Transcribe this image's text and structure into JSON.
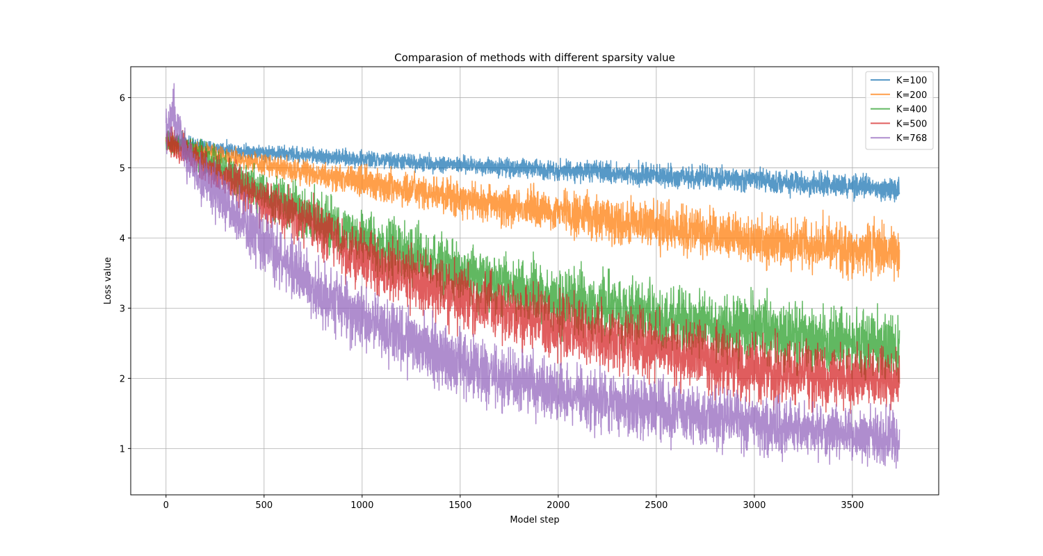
{
  "chart_data": {
    "type": "line",
    "title": "Comparasion of methods with different sparsity value",
    "xlabel": "Model step",
    "ylabel": "Loss value",
    "xlim": [
      -180,
      3940
    ],
    "ylim": [
      0.34,
      6.44
    ],
    "xticks": [
      0,
      500,
      1000,
      1500,
      2000,
      2500,
      3000,
      3500
    ],
    "yticks": [
      1,
      2,
      3,
      4,
      5,
      6
    ],
    "grid": true,
    "legend_position": "top-right",
    "x_range": [
      0,
      3740
    ],
    "series": [
      {
        "name": "K=100",
        "color": "#1f77b4",
        "trend_x": [
          0,
          100,
          250,
          500,
          1000,
          1500,
          2000,
          2500,
          3000,
          3500,
          3740
        ],
        "trend_y": [
          5.35,
          5.35,
          5.28,
          5.22,
          5.12,
          5.04,
          4.97,
          4.89,
          4.82,
          4.73,
          4.7
        ],
        "noise_amplitude": [
          0.08,
          0.08,
          0.08,
          0.09,
          0.1,
          0.1,
          0.12,
          0.13,
          0.14,
          0.14,
          0.14
        ]
      },
      {
        "name": "K=200",
        "color": "#ff7f0e",
        "trend_x": [
          0,
          100,
          250,
          500,
          1000,
          1500,
          2000,
          2500,
          3000,
          3500,
          3740
        ],
        "trend_y": [
          5.35,
          5.3,
          5.2,
          5.05,
          4.8,
          4.55,
          4.38,
          4.17,
          3.98,
          3.85,
          3.8
        ],
        "noise_amplitude": [
          0.1,
          0.1,
          0.1,
          0.12,
          0.18,
          0.22,
          0.25,
          0.28,
          0.3,
          0.32,
          0.32
        ]
      },
      {
        "name": "K=400",
        "color": "#2ca02c",
        "trend_x": [
          0,
          100,
          250,
          500,
          750,
          1000,
          1500,
          2000,
          2500,
          3000,
          3500,
          3740
        ],
        "trend_y": [
          5.4,
          5.3,
          5.05,
          4.65,
          4.3,
          3.98,
          3.5,
          3.12,
          2.85,
          2.7,
          2.5,
          2.45
        ],
        "noise_amplitude": [
          0.12,
          0.15,
          0.2,
          0.25,
          0.3,
          0.32,
          0.35,
          0.38,
          0.4,
          0.4,
          0.4,
          0.4
        ]
      },
      {
        "name": "K=500",
        "color": "#d62728",
        "trend_x": [
          0,
          100,
          250,
          500,
          750,
          1000,
          1500,
          2000,
          2500,
          3000,
          3500,
          3740
        ],
        "trend_y": [
          5.4,
          5.25,
          4.95,
          4.5,
          4.15,
          3.7,
          3.15,
          2.75,
          2.42,
          2.15,
          1.98,
          1.95
        ],
        "noise_amplitude": [
          0.15,
          0.18,
          0.22,
          0.28,
          0.32,
          0.35,
          0.38,
          0.38,
          0.4,
          0.4,
          0.38,
          0.35
        ]
      },
      {
        "name": "K=768",
        "color": "#9467bd",
        "trend_x": [
          0,
          40,
          100,
          250,
          500,
          750,
          1000,
          1500,
          2000,
          2500,
          3000,
          3500,
          3740
        ],
        "trend_y": [
          5.5,
          5.8,
          5.15,
          4.65,
          3.9,
          3.3,
          2.85,
          2.2,
          1.8,
          1.55,
          1.35,
          1.18,
          1.15
        ],
        "noise_amplitude": [
          0.3,
          0.35,
          0.28,
          0.3,
          0.35,
          0.38,
          0.38,
          0.38,
          0.36,
          0.35,
          0.34,
          0.32,
          0.3
        ]
      }
    ]
  }
}
